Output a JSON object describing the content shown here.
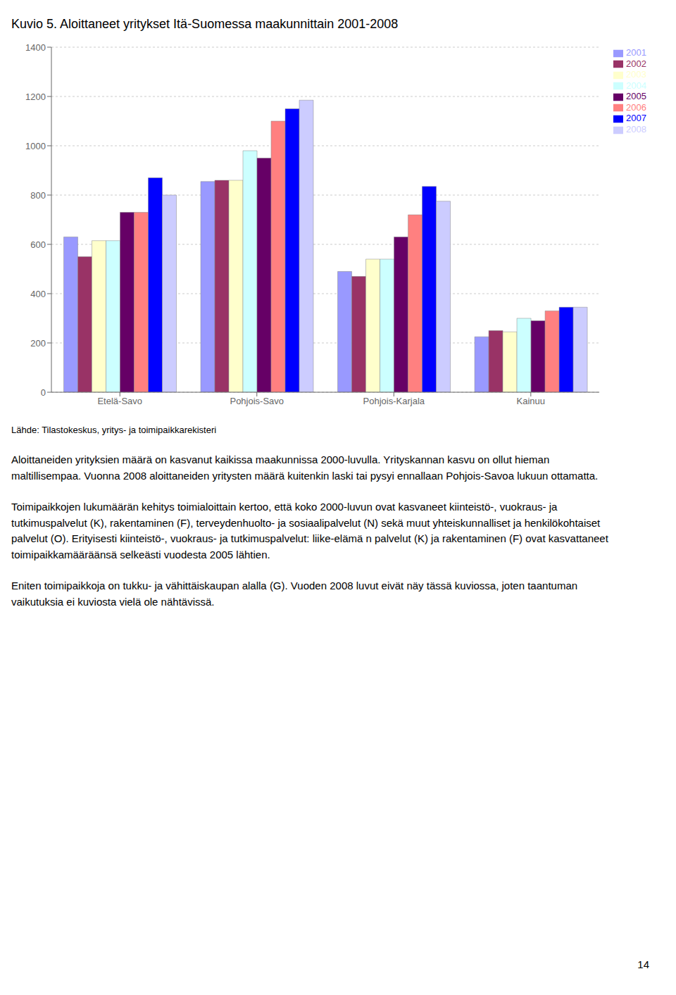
{
  "chart_data": {
    "type": "bar",
    "title": "Kuvio 5. Aloittaneet yritykset Itä-Suomessa maakunnittain 2001-2008",
    "categories": [
      "Etelä-Savo",
      "Pohjois-Savo",
      "Pohjois-Karjala",
      "Kainuu"
    ],
    "series": [
      {
        "name": "2001",
        "color": "#9999FF",
        "values": [
          630,
          855,
          490,
          225
        ]
      },
      {
        "name": "2002",
        "color": "#993366",
        "values": [
          550,
          860,
          470,
          250
        ]
      },
      {
        "name": "2003",
        "color": "#FFFFCC",
        "values": [
          615,
          860,
          540,
          245
        ]
      },
      {
        "name": "2004",
        "color": "#CCFFFF",
        "values": [
          615,
          980,
          540,
          300
        ]
      },
      {
        "name": "2005",
        "color": "#660066",
        "values": [
          730,
          950,
          630,
          290
        ]
      },
      {
        "name": "2006",
        "color": "#FF8080",
        "values": [
          730,
          1100,
          720,
          330
        ]
      },
      {
        "name": "2007",
        "color": "#0000FF",
        "values": [
          870,
          1150,
          835,
          345
        ]
      },
      {
        "name": "2008",
        "color": "#CCCCFF",
        "values": [
          800,
          1185,
          775,
          345
        ]
      }
    ],
    "ylim": [
      0,
      1400
    ],
    "yticks": [
      0,
      200,
      400,
      600,
      800,
      1000,
      1200,
      1400
    ],
    "grid": true,
    "legend": "right",
    "annotations": [
      "Lähde: Tilastokeskus, yritys- ja toimipaikkarekisteri",
      "Aloittaneiden yrityksien määrä on kasvanut kaikissa maakunnissa 2000-luvulla. Yrityskannan kasvu on ollut hieman maltillisempaa. Vuonna 2008 aloittaneiden yritysten määrä kuitenkin laski tai pysyi ennallaan Pohjois-Savoa lukuun ottamatta.",
      "Toimipaikkojen lukumäärän kehitys toimialoittain kertoo, että koko 2000-luvun ovat kasvaneet kiinteistö-, vuokraus- ja tutkimuspalvelut (K), rakentaminen (F), terveydenhuolto- ja sosiaalipalvelut (N) sekä muut yhteiskunnalliset ja henkilökohtaiset palvelut (O). Erityisesti kiinteistö-, vuokraus- ja tutkimuspalvelut: liike-elämä n palvelut (K) ja rakentaminen (F) ovat kasvattaneet toimipaikkamääräänsä selkeästi vuodesta 2005 lähtien.",
      "Eniten toimipaikkoja on tukku- ja vähittäiskaupan alalla (G). Vuoden 2008 luvut eivät näy tässä kuviossa, joten taantuman vaikutuksia ei kuviosta vielä ole nähtävissä.",
      "14"
    ]
  }
}
